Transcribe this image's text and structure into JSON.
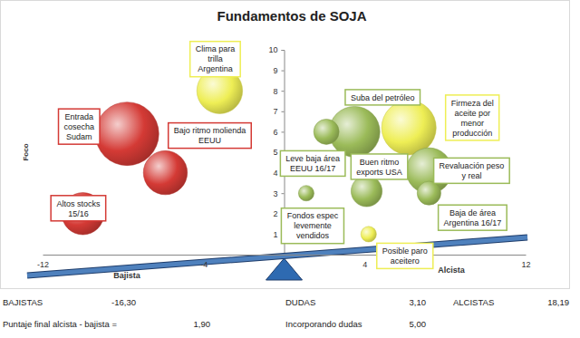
{
  "chart_data": {
    "type": "bubble",
    "title": "Fundamentos de SOJA",
    "x_axis_labels": [
      "Bajista",
      "Alcista"
    ],
    "y_label": "Foco",
    "labels": [
      "Entrada\ncosecha\nSudam",
      "Bajo ritmo molienda\nEEUU",
      "Altos stocks\n15/16",
      "Clima para\ntrilla\nArgentina",
      "Suba del petróleo",
      "Leve baja área\nEEUU 16/17",
      "Buen ritmo\nexports USA",
      "Firmeza del\naceite por\nmenor\nproducción",
      "Revaluación peso\ny real",
      "Baja de área\nArgentina 16/17",
      "Fondos espec\nlevemente\nvendidos",
      "Posible paro\naceitero"
    ],
    "x": [
      -7.8,
      -5.9,
      -10,
      -3.2,
      3.5,
      2.1,
      4.1,
      6.2,
      7.2,
      7.2,
      1.1,
      4.2
    ],
    "values": [
      5.9,
      4.0,
      2.0,
      8.0,
      6.0,
      6.0,
      3.1,
      6.2,
      4.1,
      3.0,
      3.0,
      1.0
    ],
    "sizes": [
      5,
      2.4,
      2.2,
      2.6,
      3.2,
      0.8,
      1.2,
      3.7,
      2.6,
      0.7,
      0.3,
      0.3
    ],
    "colors": [
      "#d43a35",
      "#d43a35",
      "#d43a35",
      "#eeee55",
      "#9bbb59",
      "#9bbb59",
      "#9bbb59",
      "#eeee55",
      "#9bbb59",
      "#9bbb59",
      "#9bbb59",
      "#eeee55"
    ],
    "xlim": [
      -12,
      12
    ],
    "xticks": [
      -12,
      -4,
      4,
      12
    ],
    "ylim": [
      0,
      10
    ],
    "yticks": [
      1,
      2,
      3,
      4,
      5,
      6,
      7,
      8,
      9,
      10
    ],
    "summary": [
      [
        {
          "label": "BAJISTAS",
          "text": "-16,30"
        },
        {
          "label": "DUDAS",
          "text": "3,10"
        },
        {
          "label": "ALCISTAS",
          "text": "18,19"
        }
      ],
      [
        {
          "label": "Puntaje final alcista - bajista =",
          "text": "1,90"
        },
        {
          "label": "Incorporando dudas",
          "text": "5,00"
        }
      ]
    ]
  }
}
